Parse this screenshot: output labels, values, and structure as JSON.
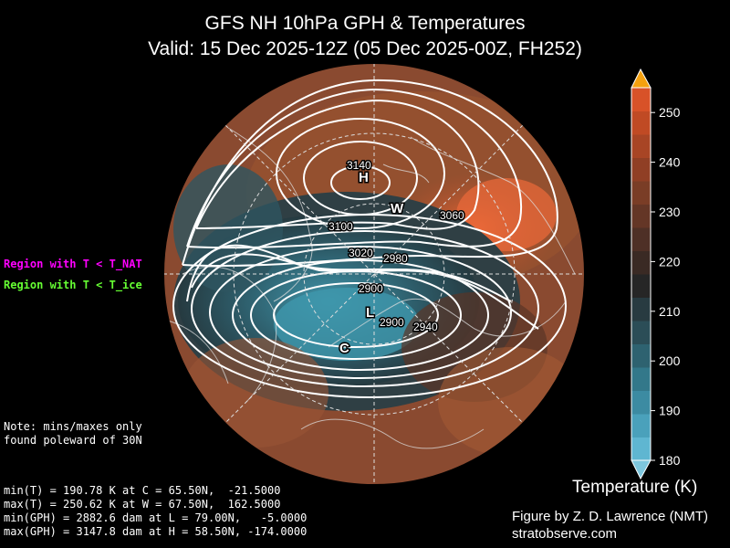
{
  "header": {
    "title_line1": "GFS NH 10hPa GPH & Temperatures",
    "title_line2": "Valid: 15 Dec 2025-12Z  (05 Dec 2025-00Z, FH252)"
  },
  "legend": {
    "nat_label": "Region with T < T_NAT",
    "ice_label": "Region with T < T_ice",
    "nat_color": "#ff00ff",
    "ice_color": "#66ff33"
  },
  "note": {
    "line1": "Note: mins/maxes only",
    "line2": "found poleward of 30N"
  },
  "stats": {
    "min_t": "min(T) = 190.78 K at C = 65.50N,  -21.5000",
    "max_t": "max(T) = 250.62 K at W = 67.50N,  162.5000",
    "min_gph": "min(GPH) = 2882.6 dam at L = 79.00N,   -5.0000",
    "max_gph": "max(GPH) = 3147.8 dam at H = 58.50N, -174.0000"
  },
  "markers": {
    "H": "H",
    "L": "L",
    "W": "W",
    "C": "C"
  },
  "contour_labels": [
    "3140",
    "3100",
    "3060",
    "3020",
    "2980",
    "2900",
    "2900",
    "2940"
  ],
  "colorbar": {
    "label": "Temperature (K)",
    "ticks": [
      "250",
      "240",
      "230",
      "220",
      "210",
      "200",
      "190",
      "180"
    ],
    "min": 180,
    "max": 255
  },
  "credits": {
    "author": "Figure by Z. D. Lawrence (NMT)",
    "site": "stratobserve.com"
  }
}
